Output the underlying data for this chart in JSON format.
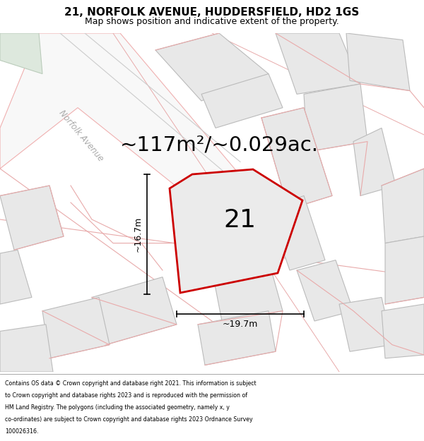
{
  "title": "21, NORFOLK AVENUE, HUDDERSFIELD, HD2 1GS",
  "subtitle": "Map shows position and indicative extent of the property.",
  "area_text": "~117m²/~0.029ac.",
  "house_number": "21",
  "dim_width": "~19.7m",
  "dim_height": "~16.7m",
  "bg_color": "#ffffff",
  "building_fill": "#e8e8e8",
  "building_edge_gray": "#bbbbbb",
  "building_edge_pink": "#e8aaaa",
  "plot_fill": "#ebebeb",
  "plot_edge": "#cc0000",
  "road_line": "#f0b0b0",
  "green_fill": "#dde8dd",
  "street_label_color": "#aaaaaa",
  "footer_text_lines": [
    "Contains OS data © Crown copyright and database right 2021. This information is subject",
    "to Crown copyright and database rights 2023 and is reproduced with the permission of",
    "HM Land Registry. The polygons (including the associated geometry, namely x, y",
    "co-ordinates) are subject to Crown copyright and database rights 2023 Ordnance Survey",
    "100026316."
  ],
  "street_label": "Norfolk Avenue",
  "title_fontsize": 11,
  "subtitle_fontsize": 9,
  "area_fontsize": 21,
  "number_fontsize": 26,
  "dim_fontsize": 9
}
